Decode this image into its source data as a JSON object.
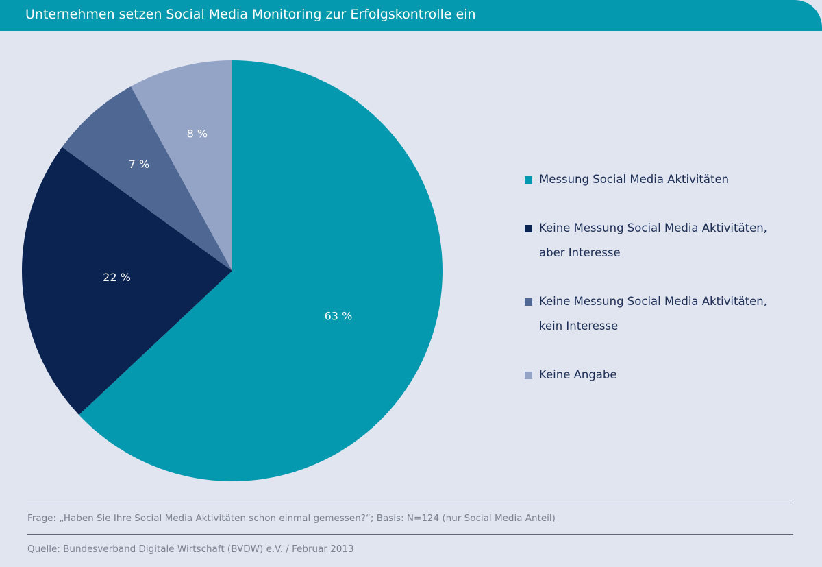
{
  "chart_data": {
    "type": "pie",
    "title": "Unternehmen setzen Social Media Monitoring zur Erfolgskontrolle ein",
    "categories": [
      "Messung Social Media Aktivitäten",
      "Keine Messung Social Media Aktivitäten, aber Interesse",
      "Keine Messung Social Media Aktivitäten, kein Interesse",
      "Keine Angabe"
    ],
    "values": [
      63,
      22,
      7,
      8
    ],
    "value_labels": [
      "63 %",
      "22 %",
      "7 %",
      "8 %"
    ],
    "colors": [
      "#0599b0",
      "#0b2350",
      "#4f6793",
      "#94a4c6"
    ],
    "legend": "right",
    "footnote": "Frage: „Haben Sie Ihre Social Media Aktivitäten schon einmal gemessen?“; Basis: N=124 (nur Social Media Anteil)",
    "source": "Quelle: Bundesverband Digitale Wirtschaft (BVDW) e.V. / Februar 2013"
  }
}
